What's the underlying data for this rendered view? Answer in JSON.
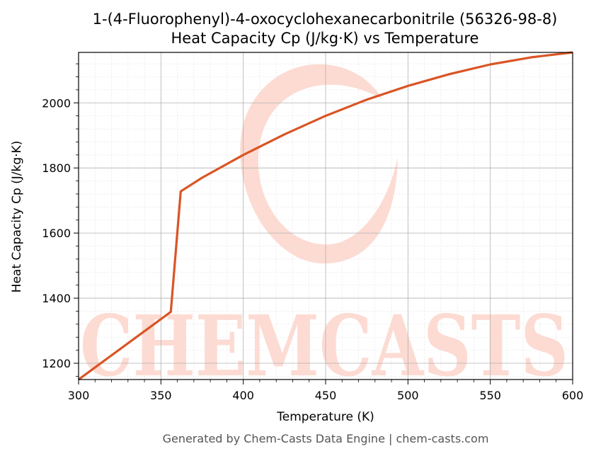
{
  "chart_data": {
    "type": "line",
    "title_line1": "1-(4-Fluorophenyl)-4-oxocyclohexanecarbonitrile (56326-98-8)",
    "title_line2": "Heat Capacity Cp (J/kg·K) vs Temperature",
    "xlabel": "Temperature (K)",
    "ylabel": "Heat Capacity Cp (J/kg·K)",
    "xlim": [
      300,
      600
    ],
    "ylim": [
      1150,
      2155
    ],
    "x_ticks": [
      300,
      350,
      400,
      450,
      500,
      550,
      600
    ],
    "y_ticks": [
      1200,
      1400,
      1600,
      1800,
      2000
    ],
    "grid": true,
    "line_color": "#d95525",
    "series": [
      {
        "x": [
          300,
          356,
          362,
          375,
          400,
          425,
          450,
          475,
          500,
          525,
          550,
          575,
          600
        ],
        "y": [
          1150,
          1358,
          1728,
          1770,
          1840,
          1903,
          1960,
          2010,
          2052,
          2088,
          2118,
          2140,
          2155
        ]
      }
    ]
  },
  "watermark": {
    "text": "CHEMCASTS",
    "color": "#fddbd2"
  },
  "footer": "Generated by Chem-Casts Data Engine | chem-casts.com"
}
